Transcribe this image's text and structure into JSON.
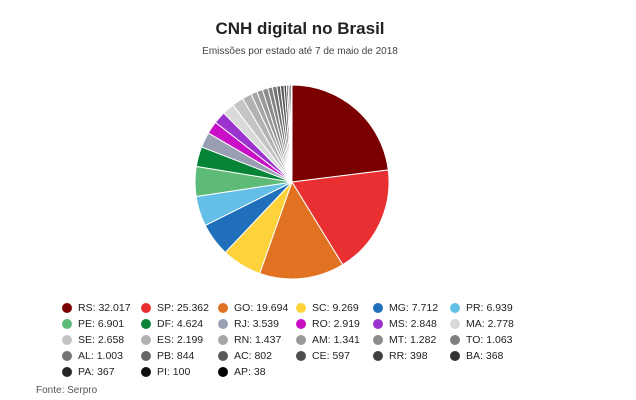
{
  "chart_data": {
    "type": "pie",
    "title": "CNH digital no Brasil",
    "subtitle": "Emissões por estado até 7 de maio de 2018",
    "slices": [
      {
        "label": "RS",
        "value": 32017,
        "display": "32.017",
        "color": "#7a0000"
      },
      {
        "label": "SP",
        "value": 25362,
        "display": "25.362",
        "color": "#ea2f33"
      },
      {
        "label": "GO",
        "value": 19694,
        "display": "19.694",
        "color": "#e07222"
      },
      {
        "label": "SC",
        "value": 9269,
        "display": "9.269",
        "color": "#fdd23a"
      },
      {
        "label": "MG",
        "value": 7712,
        "display": "7.712",
        "color": "#1f6fba"
      },
      {
        "label": "PR",
        "value": 6939,
        "display": "6.939",
        "color": "#63bfe6"
      },
      {
        "label": "PE",
        "value": 6901,
        "display": "6.901",
        "color": "#5dba77"
      },
      {
        "label": "DF",
        "value": 4624,
        "display": "4.624",
        "color": "#058437"
      },
      {
        "label": "RJ",
        "value": 3539,
        "display": "3.539",
        "color": "#9a9eb2"
      },
      {
        "label": "RO",
        "value": 2919,
        "display": "2.919",
        "color": "#c90fc5"
      },
      {
        "label": "MS",
        "value": 2848,
        "display": "2.848",
        "color": "#9b33cf"
      },
      {
        "label": "MA",
        "value": 2778,
        "display": "2.778",
        "color": "#d9d9d9"
      },
      {
        "label": "SE",
        "value": 2658,
        "display": "2.658",
        "color": "#c4c4c4"
      },
      {
        "label": "ES",
        "value": 2199,
        "display": "2.199",
        "color": "#b2b2b2"
      },
      {
        "label": "RN",
        "value": 1437,
        "display": "1.437",
        "color": "#a6a6a6"
      },
      {
        "label": "AM",
        "value": 1341,
        "display": "1.341",
        "color": "#999999"
      },
      {
        "label": "MT",
        "value": 1282,
        "display": "1.282",
        "color": "#8c8c8c"
      },
      {
        "label": "TO",
        "value": 1063,
        "display": "1.063",
        "color": "#808080"
      },
      {
        "label": "AL",
        "value": 1003,
        "display": "1.003",
        "color": "#737373"
      },
      {
        "label": "PB",
        "value": 844,
        "display": "844",
        "color": "#666666"
      },
      {
        "label": "AC",
        "value": 802,
        "display": "802",
        "color": "#595959"
      },
      {
        "label": "CE",
        "value": 597,
        "display": "597",
        "color": "#4d4d4d"
      },
      {
        "label": "RR",
        "value": 398,
        "display": "398",
        "color": "#404040"
      },
      {
        "label": "BA",
        "value": 368,
        "display": "368",
        "color": "#333333"
      },
      {
        "label": "PA",
        "value": 367,
        "display": "367",
        "color": "#262626"
      },
      {
        "label": "PI",
        "value": 100,
        "display": "100",
        "color": "#111111"
      },
      {
        "label": "AP",
        "value": 38,
        "display": "38",
        "color": "#000000"
      }
    ],
    "legend_position": "bottom",
    "start_angle_deg": 0,
    "direction": "clockwise"
  },
  "source": "Fonte: Serpro"
}
